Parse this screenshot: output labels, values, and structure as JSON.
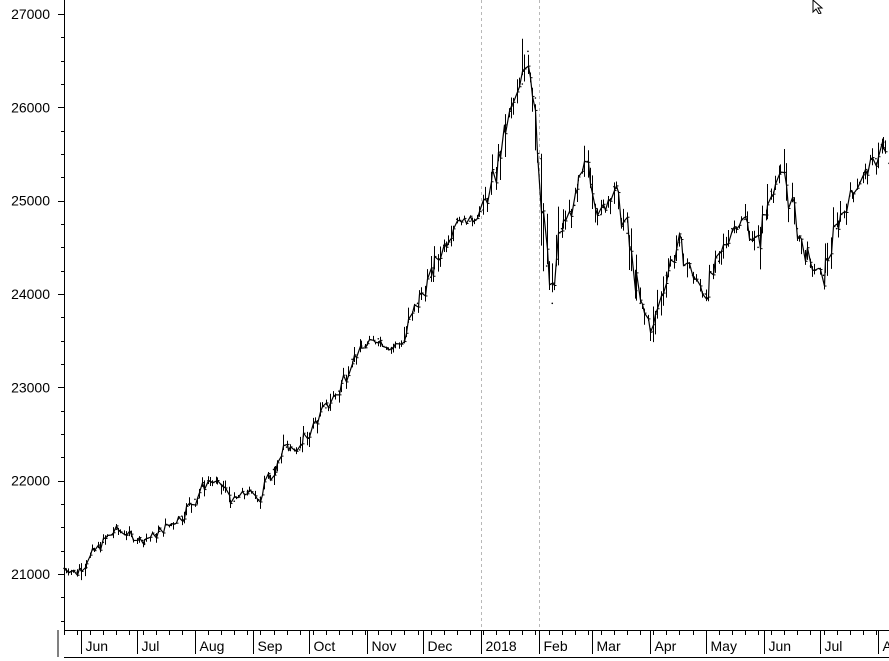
{
  "chart_data": {
    "type": "line",
    "title": "",
    "xlabel": "",
    "ylabel": "",
    "ylim": [
      20400,
      27150
    ],
    "y_ticks": [
      21000,
      22000,
      23000,
      24000,
      25000,
      26000,
      27000
    ],
    "y_tick_labels": [
      "21000",
      "22000",
      "23000",
      "24000",
      "25000",
      "26000",
      "27000"
    ],
    "x_tick_labels": [
      {
        "label": "Jun",
        "date": "2017-06-01"
      },
      {
        "label": "Jul",
        "date": "2017-07-01"
      },
      {
        "label": "Aug",
        "date": "2017-08-01"
      },
      {
        "label": "Sep",
        "date": "2017-09-01"
      },
      {
        "label": "Oct",
        "date": "2017-10-01"
      },
      {
        "label": "Nov",
        "date": "2017-11-01"
      },
      {
        "label": "Dec",
        "date": "2017-12-01"
      },
      {
        "label": "2018",
        "date": "2018-01-01"
      },
      {
        "label": "Feb",
        "date": "2018-02-01"
      },
      {
        "label": "Mar",
        "date": "2018-03-01"
      },
      {
        "label": "Apr",
        "date": "2018-04-01"
      },
      {
        "label": "May",
        "date": "2018-05-01"
      },
      {
        "label": "Jun",
        "date": "2018-06-01"
      },
      {
        "label": "Jul",
        "date": "2018-07-01"
      },
      {
        "label": "Au",
        "date": "2018-08-01"
      }
    ],
    "xlim": [
      "2017-05-23",
      "2018-08-07"
    ],
    "reference_lines": [
      "2018-01-01",
      "2018-02-01"
    ],
    "grid": false,
    "series": [
      {
        "values": [
          {
            "x": "2017-05-23",
            "y": 21060
          },
          {
            "x": "2017-05-30",
            "y": 21020
          },
          {
            "x": "2017-06-06",
            "y": 21180
          },
          {
            "x": "2017-06-13",
            "y": 21340
          },
          {
            "x": "2017-06-20",
            "y": 21480
          },
          {
            "x": "2017-06-27",
            "y": 21420
          },
          {
            "x": "2017-07-04",
            "y": 21360
          },
          {
            "x": "2017-07-11",
            "y": 21420
          },
          {
            "x": "2017-07-18",
            "y": 21520
          },
          {
            "x": "2017-07-25",
            "y": 21620
          },
          {
            "x": "2017-08-01",
            "y": 21800
          },
          {
            "x": "2017-08-08",
            "y": 22000
          },
          {
            "x": "2017-08-15",
            "y": 21960
          },
          {
            "x": "2017-08-22",
            "y": 21780
          },
          {
            "x": "2017-08-29",
            "y": 21880
          },
          {
            "x": "2017-09-05",
            "y": 21820
          },
          {
            "x": "2017-09-12",
            "y": 22120
          },
          {
            "x": "2017-09-19",
            "y": 22360
          },
          {
            "x": "2017-09-26",
            "y": 22330
          },
          {
            "x": "2017-10-03",
            "y": 22580
          },
          {
            "x": "2017-10-10",
            "y": 22780
          },
          {
            "x": "2017-10-17",
            "y": 22960
          },
          {
            "x": "2017-10-24",
            "y": 23300
          },
          {
            "x": "2017-10-31",
            "y": 23440
          },
          {
            "x": "2017-11-07",
            "y": 23520
          },
          {
            "x": "2017-11-14",
            "y": 23420
          },
          {
            "x": "2017-11-21",
            "y": 23500
          },
          {
            "x": "2017-11-28",
            "y": 23900
          },
          {
            "x": "2017-12-05",
            "y": 24180
          },
          {
            "x": "2017-12-12",
            "y": 24520
          },
          {
            "x": "2017-12-19",
            "y": 24800
          },
          {
            "x": "2017-12-26",
            "y": 24780
          },
          {
            "x": "2018-01-02",
            "y": 24900
          },
          {
            "x": "2018-01-09",
            "y": 25300
          },
          {
            "x": "2018-01-16",
            "y": 25900
          },
          {
            "x": "2018-01-23",
            "y": 26250
          },
          {
            "x": "2018-01-26",
            "y": 26600
          },
          {
            "x": "2018-01-30",
            "y": 26100
          },
          {
            "x": "2018-02-02",
            "y": 25450
          },
          {
            "x": "2018-02-05",
            "y": 24300
          },
          {
            "x": "2018-02-08",
            "y": 23900
          },
          {
            "x": "2018-02-13",
            "y": 24700
          },
          {
            "x": "2018-02-20",
            "y": 24950
          },
          {
            "x": "2018-02-27",
            "y": 25420
          },
          {
            "x": "2018-03-06",
            "y": 24850
          },
          {
            "x": "2018-03-13",
            "y": 25150
          },
          {
            "x": "2018-03-20",
            "y": 24650
          },
          {
            "x": "2018-03-27",
            "y": 23900
          },
          {
            "x": "2018-04-03",
            "y": 23600
          },
          {
            "x": "2018-04-10",
            "y": 24200
          },
          {
            "x": "2018-04-17",
            "y": 24550
          },
          {
            "x": "2018-04-24",
            "y": 24200
          },
          {
            "x": "2018-05-01",
            "y": 24000
          },
          {
            "x": "2018-05-08",
            "y": 24350
          },
          {
            "x": "2018-05-15",
            "y": 24700
          },
          {
            "x": "2018-05-22",
            "y": 24800
          },
          {
            "x": "2018-05-29",
            "y": 24500
          },
          {
            "x": "2018-06-05",
            "y": 25100
          },
          {
            "x": "2018-06-12",
            "y": 25300
          },
          {
            "x": "2018-06-19",
            "y": 24700
          },
          {
            "x": "2018-06-26",
            "y": 24300
          },
          {
            "x": "2018-07-03",
            "y": 24200
          },
          {
            "x": "2018-07-10",
            "y": 24700
          },
          {
            "x": "2018-07-17",
            "y": 25050
          },
          {
            "x": "2018-07-24",
            "y": 25250
          },
          {
            "x": "2018-07-31",
            "y": 25450
          },
          {
            "x": "2018-08-03",
            "y": 25600
          },
          {
            "x": "2018-08-07",
            "y": 25400
          }
        ]
      }
    ]
  }
}
